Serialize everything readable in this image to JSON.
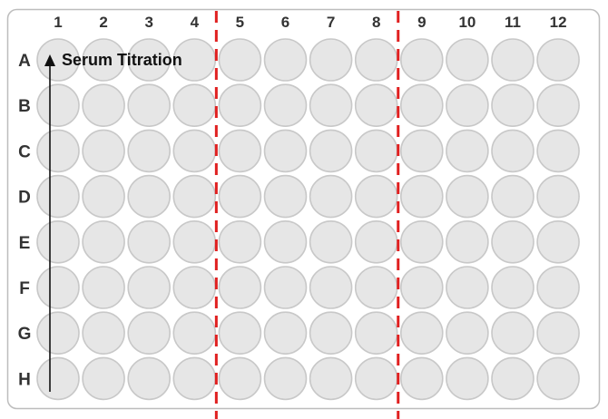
{
  "plate": {
    "column_labels": [
      "1",
      "2",
      "3",
      "4",
      "5",
      "6",
      "7",
      "8",
      "9",
      "10",
      "11",
      "12"
    ],
    "row_labels": [
      "A",
      "B",
      "C",
      "D",
      "E",
      "F",
      "G",
      "H"
    ],
    "well_fill": "#e6e6e6",
    "well_stroke": "#c8c8c8",
    "plate_border": "#bdbdbd",
    "label_color": "#333333"
  },
  "annotation": {
    "text": "Serum Titration",
    "arrow_direction": "up",
    "arrow_column": "1"
  },
  "dividers": {
    "color": "#e02020",
    "style": "dashed",
    "after_columns": [
      "4",
      "8"
    ]
  }
}
